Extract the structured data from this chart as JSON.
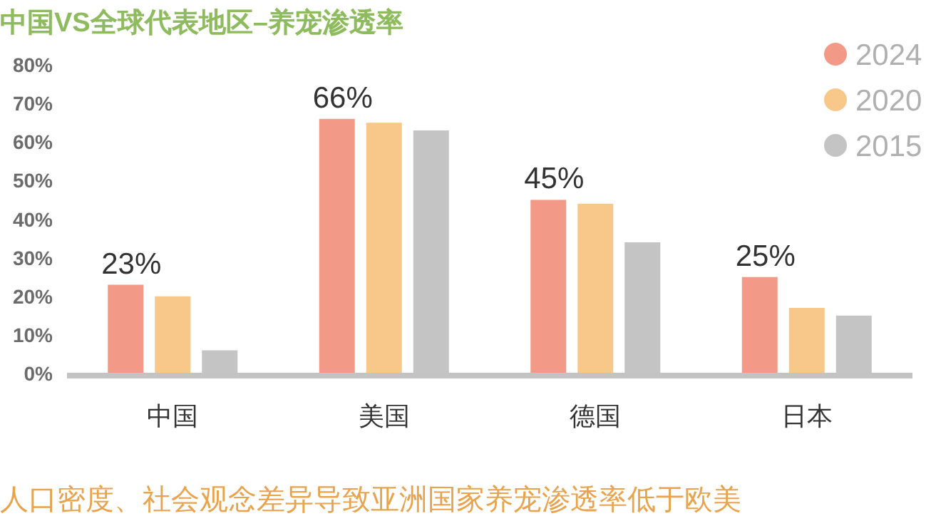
{
  "chart_data": {
    "type": "bar",
    "title": "中国VS全球代表地区–养宠渗透率",
    "annotations": [
      "人口密度、社会观念差异导致亚洲国家养宠渗透率低于欧美"
    ],
    "categories": [
      "中国",
      "美国",
      "德国",
      "日本"
    ],
    "series": [
      {
        "name": "2024",
        "color": "#f29a87",
        "values": [
          23,
          66,
          45,
          25
        ],
        "value_labels": [
          "23%",
          "66%",
          "45%",
          "25%"
        ]
      },
      {
        "name": "2020",
        "color": "#f7c88a",
        "values": [
          20,
          65,
          44,
          17
        ]
      },
      {
        "name": "2015",
        "color": "#c4c4c4",
        "values": [
          6,
          63,
          34,
          15
        ]
      }
    ],
    "ylim": [
      0,
      80
    ],
    "yticks": [
      {
        "value": 0,
        "label": "0%"
      },
      {
        "value": 10,
        "label": "10%"
      },
      {
        "value": 20,
        "label": "20%"
      },
      {
        "value": 30,
        "label": "30%"
      },
      {
        "value": 40,
        "label": "40%"
      },
      {
        "value": 50,
        "label": "50%"
      },
      {
        "value": 60,
        "label": "60%"
      },
      {
        "value": 70,
        "label": "70%"
      },
      {
        "value": 80,
        "label": "80%"
      }
    ],
    "legend": "top right"
  }
}
